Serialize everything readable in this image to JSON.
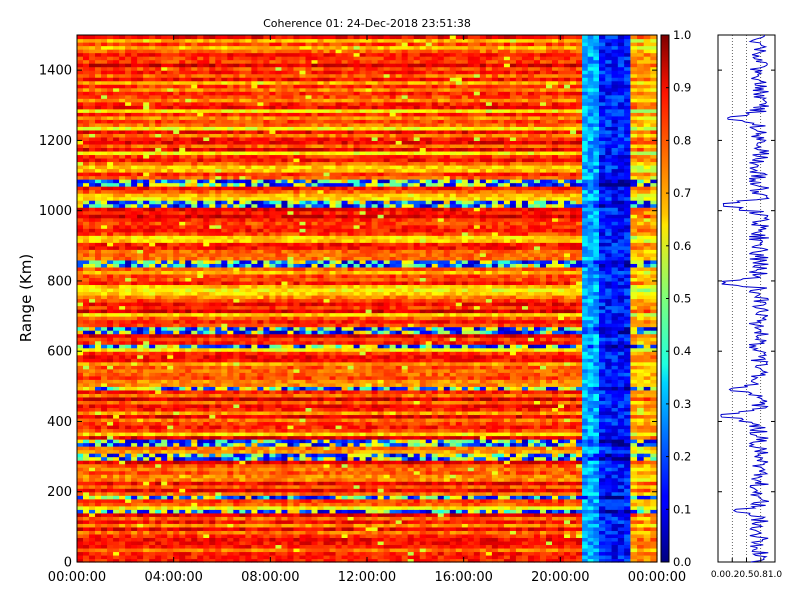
{
  "chart_data": [
    {
      "type": "heatmap",
      "title": "Coherence 01: 24-Dec-2018 23:51:38",
      "xlabel": "",
      "ylabel": "Range (Km)",
      "x_ticks": [
        "00:00:00",
        "04:00:00",
        "08:00:00",
        "12:00:00",
        "16:00:00",
        "20:00:00",
        "00:00:00"
      ],
      "x_range_hours": [
        0,
        24
      ],
      "y_ticks": [
        "0",
        "200",
        "400",
        "600",
        "800",
        "1000",
        "1200",
        "1400"
      ],
      "y_range_km": [
        0,
        1500
      ],
      "grid": false,
      "colormap": "jet",
      "colorbar": {
        "ticks": [
          "0.0",
          "0.1",
          "0.2",
          "0.3",
          "0.4",
          "0.5",
          "0.6",
          "0.7",
          "0.8",
          "0.9",
          "1.0"
        ],
        "range": [
          0,
          1
        ]
      },
      "time_segments": [
        {
          "start_hour": 0.0,
          "end_hour": 20.9,
          "typical_coherence": 0.82
        },
        {
          "start_hour": 20.9,
          "end_hour": 21.6,
          "typical_coherence": 0.3
        },
        {
          "start_hour": 21.6,
          "end_hour": 22.9,
          "typical_coherence": 0.15
        },
        {
          "start_hour": 22.9,
          "end_hour": 24.0,
          "typical_coherence": 0.72
        }
      ],
      "low_coherence_range_bands_km": [
        145,
        185,
        300,
        340,
        495,
        615,
        660,
        850,
        1020,
        1080
      ]
    },
    {
      "type": "line",
      "xlabel": "",
      "ylabel": "",
      "x_ticks": [
        "0.0",
        "0.2",
        "0.5",
        "0.8",
        "1.0"
      ],
      "xlim": [
        0,
        1
      ],
      "ylim_km": [
        0,
        1500
      ],
      "grid": false,
      "series_color": "#0000cc",
      "typical_value": 0.72,
      "dips": [
        {
          "range_km": 1015,
          "value": 0.05
        },
        {
          "range_km": 795,
          "value": 0.05
        },
        {
          "range_km": 415,
          "value": 0.05
        },
        {
          "range_km": 1265,
          "value": 0.15
        },
        {
          "range_km": 490,
          "value": 0.2
        },
        {
          "range_km": 145,
          "value": 0.25
        }
      ]
    }
  ]
}
